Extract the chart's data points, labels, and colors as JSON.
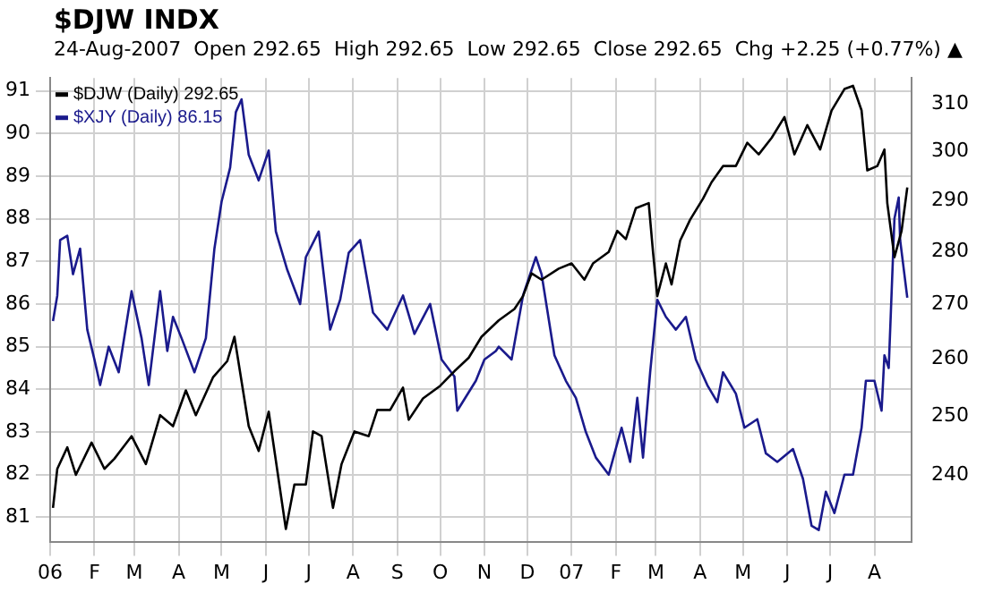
{
  "chart_data": {
    "type": "line",
    "title": "$DJW INDX",
    "subtitle": "24-Aug-2007  Open 292.65  High 292.65  Low 292.65  Close 292.65  Chg +2.25 (+0.77%) ▲",
    "series": [
      {
        "name": "$DJW (Daily) 292.65",
        "color": "#000000",
        "axis": "y2",
        "x": [
          "2006-01-03",
          "2006-01-06",
          "2006-01-13",
          "2006-01-19",
          "2006-01-30",
          "2006-02-08",
          "2006-02-15",
          "2006-02-27",
          "2006-03-09",
          "2006-03-19",
          "2006-03-28",
          "2006-04-06",
          "2006-04-13",
          "2006-04-25",
          "2006-05-05",
          "2006-05-10",
          "2006-05-20",
          "2006-05-27",
          "2006-06-03",
          "2006-06-15",
          "2006-06-21",
          "2006-06-29",
          "2006-07-04",
          "2006-07-10",
          "2006-07-18",
          "2006-07-24",
          "2006-08-02",
          "2006-08-12",
          "2006-08-18",
          "2006-08-27",
          "2006-09-05",
          "2006-09-09",
          "2006-09-19",
          "2006-10-01",
          "2006-10-11",
          "2006-10-21",
          "2006-10-30",
          "2006-11-11",
          "2006-11-22",
          "2006-11-28",
          "2006-12-04",
          "2006-12-11",
          "2006-12-23",
          "2007-01-01",
          "2007-01-10",
          "2007-01-16",
          "2007-01-27",
          "2007-02-02",
          "2007-02-08",
          "2007-02-15",
          "2007-02-24",
          "2007-02-27",
          "2007-03-02",
          "2007-03-08",
          "2007-03-12",
          "2007-03-18",
          "2007-03-25",
          "2007-04-03",
          "2007-04-09",
          "2007-04-17",
          "2007-04-26",
          "2007-05-04",
          "2007-05-12",
          "2007-05-21",
          "2007-05-30",
          "2007-06-06",
          "2007-06-15",
          "2007-06-24",
          "2007-07-02",
          "2007-07-11",
          "2007-07-17",
          "2007-07-23",
          "2007-07-27",
          "2007-08-03",
          "2007-08-08",
          "2007-08-10",
          "2007-08-15",
          "2007-08-20",
          "2007-08-24"
        ],
        "values": [
          234.6,
          241.0,
          244.6,
          240,
          245.4,
          241.0,
          242.7,
          246.5,
          241.8,
          250.1,
          248.2,
          254.4,
          250.1,
          256.7,
          259.6,
          264.0,
          248.2,
          244.0,
          250.7,
          231.2,
          238.4,
          238.4,
          247.3,
          246.5,
          234.6,
          241.8,
          247.3,
          246.5,
          251.0,
          251.0,
          254.9,
          249.3,
          253.0,
          255.2,
          257.8,
          260.2,
          264.0,
          267.0,
          269.1,
          271.5,
          275.8,
          274.6,
          276.7,
          277.7,
          274.6,
          277.7,
          279.9,
          284.0,
          282.4,
          288.5,
          289.5,
          279.9,
          271.5,
          277.7,
          273.7,
          282.1,
          286.2,
          290.4,
          293.7,
          297.0,
          297.0,
          301.8,
          299.4,
          302.8,
          307.2,
          299.4,
          305.5,
          300.4,
          308.6,
          313.2,
          313.9,
          308.6,
          296.1,
          297.0,
          300.4,
          289.5,
          278.9,
          284.0,
          292.65
        ]
      },
      {
        "name": "$XJY (Daily) 86.15",
        "color": "#1a1a8c",
        "x": [
          "2006-01-03",
          "2006-01-06",
          "2006-01-08",
          "2006-01-13",
          "2006-01-17",
          "2006-01-22",
          "2006-01-27",
          "2006-02-01",
          "2006-02-05",
          "2006-02-11",
          "2006-02-18",
          "2006-02-27",
          "2006-03-06",
          "2006-03-11",
          "2006-03-19",
          "2006-03-24",
          "2006-03-28",
          "2006-04-03",
          "2006-04-12",
          "2006-04-20",
          "2006-04-26",
          "2006-05-01",
          "2006-05-07",
          "2006-05-11",
          "2006-05-15",
          "2006-05-20",
          "2006-05-27",
          "2006-06-03",
          "2006-06-08",
          "2006-06-16",
          "2006-06-25",
          "2006-06-29",
          "2006-07-08",
          "2006-07-16",
          "2006-07-23",
          "2006-07-29",
          "2006-08-06",
          "2006-08-15",
          "2006-08-25",
          "2006-09-05",
          "2006-09-13",
          "2006-09-24",
          "2006-10-02",
          "2006-10-11",
          "2006-10-13",
          "2006-10-26",
          "2006-11-01",
          "2006-11-09",
          "2006-11-11",
          "2006-11-20",
          "2006-11-28",
          "2006-12-07",
          "2006-12-11",
          "2006-12-20",
          "2006-12-28",
          "2007-01-04",
          "2007-01-11",
          "2007-01-18",
          "2007-01-27",
          "2007-02-05",
          "2007-02-11",
          "2007-02-16",
          "2007-02-20",
          "2007-02-25",
          "2007-03-02",
          "2007-03-08",
          "2007-03-15",
          "2007-03-22",
          "2007-03-29",
          "2007-04-06",
          "2007-04-13",
          "2007-04-17",
          "2007-04-26",
          "2007-05-02",
          "2007-05-11",
          "2007-05-17",
          "2007-05-25",
          "2007-06-05",
          "2007-06-12",
          "2007-06-18",
          "2007-06-23",
          "2007-06-28",
          "2007-07-04",
          "2007-07-11",
          "2007-07-17",
          "2007-07-23",
          "2007-07-26",
          "2007-08-01",
          "2007-08-06",
          "2007-08-08",
          "2007-08-11",
          "2007-08-15",
          "2007-08-18",
          "2007-08-19",
          "2007-08-24"
        ],
        "values": [
          85.6,
          86.2,
          87.5,
          87.6,
          86.7,
          87.3,
          85.4,
          84.7,
          84.1,
          85.0,
          84.4,
          86.3,
          85.2,
          84.1,
          86.3,
          84.9,
          85.7,
          85.2,
          84.4,
          85.2,
          87.3,
          88.4,
          89.2,
          90.5,
          90.8,
          89.5,
          88.9,
          89.6,
          87.7,
          86.8,
          86.0,
          87.1,
          87.7,
          85.4,
          86.1,
          87.2,
          87.5,
          85.8,
          85.4,
          86.2,
          85.3,
          86.0,
          84.7,
          84.3,
          83.5,
          84.2,
          84.7,
          84.9,
          85.0,
          84.7,
          86.2,
          87.1,
          86.7,
          84.8,
          84.2,
          83.8,
          83.0,
          82.4,
          82.0,
          83.1,
          82.3,
          83.8,
          82.4,
          84.4,
          86.1,
          85.7,
          85.4,
          85.7,
          84.7,
          84.1,
          83.7,
          84.4,
          83.9,
          83.1,
          83.3,
          82.5,
          82.3,
          82.6,
          81.9,
          80.8,
          80.7,
          81.6,
          81.1,
          82.0,
          82.0,
          83.1,
          84.2,
          84.2,
          83.5,
          84.8,
          84.5,
          88.0,
          88.5,
          87.5,
          86.15
        ]
      }
    ],
    "xlim": [
      "2006-01-01",
      "2007-08-27"
    ],
    "xticks": [
      {
        "value": "2006-01-01",
        "label": "06"
      },
      {
        "value": "2006-02-01",
        "label": "F"
      },
      {
        "value": "2006-03-01",
        "label": "M"
      },
      {
        "value": "2006-04-01",
        "label": "A"
      },
      {
        "value": "2006-05-01",
        "label": "M"
      },
      {
        "value": "2006-06-01",
        "label": "J"
      },
      {
        "value": "2006-07-01",
        "label": "J"
      },
      {
        "value": "2006-08-01",
        "label": "A"
      },
      {
        "value": "2006-09-01",
        "label": "S"
      },
      {
        "value": "2006-10-01",
        "label": "O"
      },
      {
        "value": "2006-11-01",
        "label": "N"
      },
      {
        "value": "2006-12-01",
        "label": "D"
      },
      {
        "value": "2007-01-01",
        "label": "07"
      },
      {
        "value": "2007-02-01",
        "label": "F"
      },
      {
        "value": "2007-03-01",
        "label": "M"
      },
      {
        "value": "2007-04-01",
        "label": "A"
      },
      {
        "value": "2007-05-01",
        "label": "M"
      },
      {
        "value": "2007-06-01",
        "label": "J"
      },
      {
        "value": "2007-07-01",
        "label": "J"
      },
      {
        "value": "2007-08-01",
        "label": "A"
      }
    ],
    "ylim": [
      80.43,
      91.3
    ],
    "yticks": [
      81,
      82,
      83,
      84,
      85,
      86,
      87,
      88,
      89,
      90,
      91
    ],
    "y2lim": [
      229.2,
      315.6
    ],
    "y2ticks": [
      240,
      250,
      260,
      270,
      280,
      290,
      300,
      310
    ],
    "log": "y2",
    "grid": true,
    "legend": "top left",
    "marker": "none",
    "line_style": "solid"
  }
}
